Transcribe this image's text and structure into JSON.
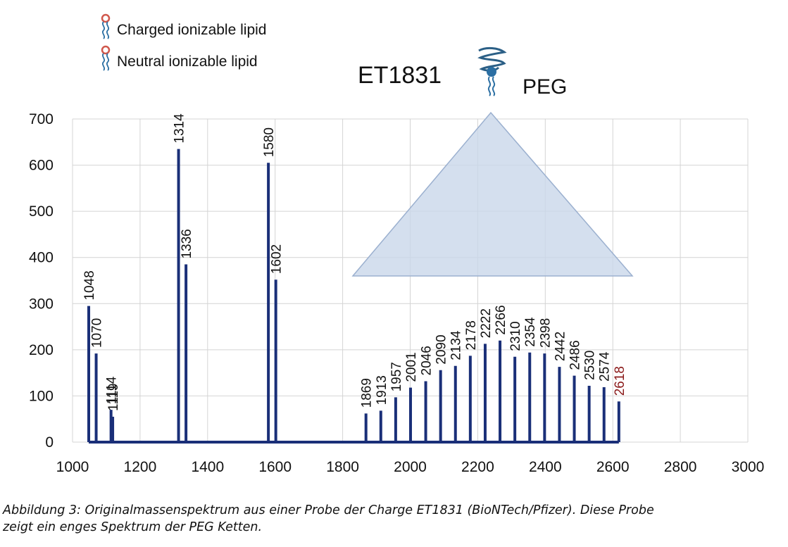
{
  "chart_data": {
    "type": "bar",
    "title": "ET1831",
    "xlabel": "",
    "ylabel": "",
    "xlim": [
      1000,
      3000
    ],
    "ylim": [
      0,
      700
    ],
    "x_ticks": [
      1000,
      1200,
      1400,
      1600,
      1800,
      2000,
      2200,
      2400,
      2600,
      2800,
      3000
    ],
    "y_ticks": [
      0,
      100,
      200,
      300,
      400,
      500,
      600,
      700
    ],
    "grid": true,
    "bar_color": "#1a2f78",
    "label_color": "#111111",
    "highlight_label_color": "#8b1a1a",
    "legend": {
      "placement": "top-left",
      "entries": [
        {
          "label": "Charged ionizable lipid",
          "icon": "charged-lipid-icon"
        },
        {
          "label": "Neutral ionizable lipid",
          "icon": "neutral-lipid-icon"
        }
      ]
    },
    "annotation": {
      "label": "PEG",
      "icon": "peg-molecule-icon",
      "shape": "triangle",
      "fill": "#c9d7ea",
      "stroke": "#9bb0cf"
    },
    "peaks": [
      {
        "x": 1048,
        "y": 295,
        "label": "1048"
      },
      {
        "x": 1070,
        "y": 192,
        "label": "1070"
      },
      {
        "x": 1114,
        "y": 70,
        "label": "1114"
      },
      {
        "x": 1119,
        "y": 55,
        "label": "1119"
      },
      {
        "x": 1314,
        "y": 635,
        "label": "1314"
      },
      {
        "x": 1336,
        "y": 385,
        "label": "1336"
      },
      {
        "x": 1580,
        "y": 605,
        "label": "1580"
      },
      {
        "x": 1602,
        "y": 352,
        "label": "1602"
      },
      {
        "x": 1869,
        "y": 62,
        "label": "1869"
      },
      {
        "x": 1913,
        "y": 68,
        "label": "1913"
      },
      {
        "x": 1957,
        "y": 97,
        "label": "1957"
      },
      {
        "x": 2001,
        "y": 118,
        "label": "2001"
      },
      {
        "x": 2046,
        "y": 132,
        "label": "2046"
      },
      {
        "x": 2090,
        "y": 156,
        "label": "2090"
      },
      {
        "x": 2134,
        "y": 165,
        "label": "2134"
      },
      {
        "x": 2178,
        "y": 187,
        "label": "2178"
      },
      {
        "x": 2222,
        "y": 213,
        "label": "2222"
      },
      {
        "x": 2266,
        "y": 220,
        "label": "2266"
      },
      {
        "x": 2310,
        "y": 185,
        "label": "2310"
      },
      {
        "x": 2354,
        "y": 194,
        "label": "2354"
      },
      {
        "x": 2398,
        "y": 192,
        "label": "2398"
      },
      {
        "x": 2442,
        "y": 163,
        "label": "2442"
      },
      {
        "x": 2486,
        "y": 144,
        "label": "2486"
      },
      {
        "x": 2530,
        "y": 122,
        "label": "2530"
      },
      {
        "x": 2574,
        "y": 119,
        "label": "2574"
      },
      {
        "x": 2618,
        "y": 88,
        "label": "2618",
        "highlight": true
      }
    ]
  },
  "caption": {
    "line1": "Abbildung 3: Originalmassenspektrum aus einer Probe der Charge ET1831 (BioNTech/Pfizer).  Diese Probe",
    "line2": "zeigt ein enges Spektrum der PEG Ketten."
  }
}
